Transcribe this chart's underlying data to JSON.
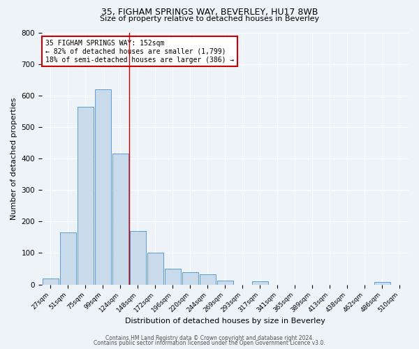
{
  "title": "35, FIGHAM SPRINGS WAY, BEVERLEY, HU17 8WB",
  "subtitle": "Size of property relative to detached houses in Beverley",
  "xlabel": "Distribution of detached houses by size in Beverley",
  "ylabel": "Number of detached properties",
  "bar_labels": [
    "27sqm",
    "51sqm",
    "75sqm",
    "99sqm",
    "124sqm",
    "148sqm",
    "172sqm",
    "196sqm",
    "220sqm",
    "244sqm",
    "269sqm",
    "293sqm",
    "317sqm",
    "341sqm",
    "365sqm",
    "389sqm",
    "413sqm",
    "438sqm",
    "462sqm",
    "486sqm",
    "510sqm"
  ],
  "bar_values": [
    20,
    165,
    565,
    620,
    415,
    170,
    100,
    50,
    40,
    33,
    12,
    0,
    10,
    0,
    0,
    0,
    0,
    0,
    0,
    7,
    0
  ],
  "bar_color": "#c9daea",
  "bar_edge_color": "#5b9bd5",
  "vline_x": 4.5,
  "vline_color": "#cc0000",
  "annotation_text": "35 FIGHAM SPRINGS WAY: 152sqm\n← 82% of detached houses are smaller (1,799)\n18% of semi-detached houses are larger (386) →",
  "annotation_box_color": "#ffffff",
  "annotation_box_edge_color": "#cc0000",
  "ylim": [
    0,
    800
  ],
  "yticks": [
    0,
    100,
    200,
    300,
    400,
    500,
    600,
    700,
    800
  ],
  "footer1": "Contains HM Land Registry data © Crown copyright and database right 2024.",
  "footer2": "Contains public sector information licensed under the Open Government Licence v3.0.",
  "bg_color": "#eef3f8",
  "plot_bg_color": "#eef3f8",
  "title_fontsize": 9,
  "subtitle_fontsize": 8,
  "annotation_fontsize": 7,
  "xlabel_fontsize": 8,
  "ylabel_fontsize": 8,
  "xtick_fontsize": 6.5,
  "ytick_fontsize": 7.5,
  "footer_fontsize": 5.5
}
